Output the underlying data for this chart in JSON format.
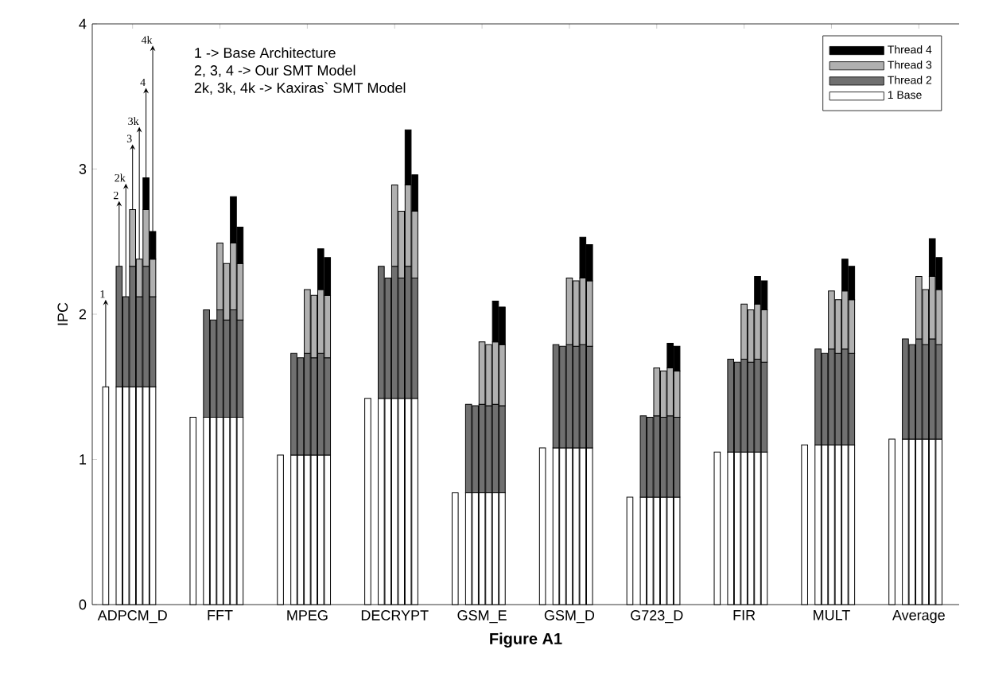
{
  "chart_data": {
    "type": "bar",
    "stacked": true,
    "title": "Figure A1",
    "ylabel": "IPC",
    "legend": "top right",
    "ylim": [
      0,
      4
    ],
    "yticks": [
      0,
      1,
      2,
      3,
      4
    ],
    "categories": [
      null,
      null,
      null,
      null,
      "ADPCM_D",
      null,
      null,
      null,
      null,
      null,
      null,
      null,
      null,
      null,
      null,
      null,
      null,
      "FFT",
      null,
      null,
      null,
      null,
      null,
      null,
      null,
      null,
      null,
      null,
      null,
      null,
      "MPEG",
      null,
      null,
      null,
      null,
      null,
      null,
      null,
      null,
      null,
      null,
      null,
      null,
      "DECRYPT",
      null,
      null,
      null,
      null,
      null,
      null,
      null,
      null,
      null,
      null,
      null,
      null,
      "GSM_E",
      null,
      null,
      null,
      null,
      null,
      null,
      null,
      null,
      null,
      null,
      null,
      null,
      "GSM_D",
      null,
      null,
      null,
      null,
      null,
      null,
      null,
      null,
      null,
      null,
      null,
      null,
      "G723_D",
      null,
      null,
      null,
      null,
      null,
      null,
      null,
      null,
      null,
      null,
      null,
      null,
      "FIR",
      null,
      null,
      null,
      null,
      null,
      null,
      null,
      null,
      null,
      null,
      null,
      null,
      "MULT",
      null,
      null,
      null,
      null,
      null,
      null,
      null,
      null,
      null,
      null,
      null,
      null,
      "Average",
      null,
      null,
      null
    ],
    "series": [
      {
        "name": "1 Base",
        "color": "#ffffff",
        "values": [
          1.5,
          null,
          1.5,
          1.5,
          1.5,
          1.5,
          1.5,
          1.5,
          null,
          null,
          null,
          null,
          null,
          1.29,
          null,
          1.29,
          1.29,
          1.29,
          1.29,
          1.29,
          1.29,
          null,
          null,
          null,
          null,
          null,
          1.03,
          null,
          1.03,
          1.03,
          1.03,
          1.03,
          1.03,
          1.03,
          null,
          null,
          null,
          null,
          null,
          1.42,
          null,
          1.42,
          1.42,
          1.42,
          1.42,
          1.42,
          1.42,
          null,
          null,
          null,
          null,
          null,
          0.77,
          null,
          0.77,
          0.77,
          0.77,
          0.77,
          0.77,
          0.77,
          null,
          null,
          null,
          null,
          null,
          1.08,
          null,
          1.08,
          1.08,
          1.08,
          1.08,
          1.08,
          1.08,
          null,
          null,
          null,
          null,
          null,
          0.74,
          null,
          0.74,
          0.74,
          0.74,
          0.74,
          0.74,
          0.74,
          null,
          null,
          null,
          null,
          null,
          1.05,
          null,
          1.05,
          1.05,
          1.05,
          1.05,
          1.05,
          1.05,
          null,
          null,
          null,
          null,
          null,
          1.1,
          null,
          1.1,
          1.1,
          1.1,
          1.1,
          1.1,
          1.1,
          null,
          null,
          null,
          null,
          null,
          1.14,
          null,
          1.14,
          1.14,
          1.14,
          1.14,
          1.14,
          1.14
        ]
      },
      {
        "name": "Thread 2",
        "color": "#707070",
        "values": [
          null,
          null,
          0.83,
          0.62,
          0.83,
          0.62,
          0.83,
          0.62,
          null,
          null,
          null,
          null,
          null,
          null,
          null,
          0.74,
          0.67,
          0.74,
          0.67,
          0.74,
          0.67,
          null,
          null,
          null,
          null,
          null,
          null,
          null,
          0.7,
          0.67,
          0.7,
          0.67,
          0.7,
          0.67,
          null,
          null,
          null,
          null,
          null,
          null,
          null,
          0.91,
          0.83,
          0.91,
          0.83,
          0.91,
          0.83,
          null,
          null,
          null,
          null,
          null,
          null,
          null,
          0.61,
          0.6,
          0.61,
          0.6,
          0.61,
          0.6,
          null,
          null,
          null,
          null,
          null,
          null,
          null,
          0.71,
          0.7,
          0.71,
          0.7,
          0.71,
          0.7,
          null,
          null,
          null,
          null,
          null,
          null,
          null,
          0.56,
          0.55,
          0.56,
          0.55,
          0.56,
          0.55,
          null,
          null,
          null,
          null,
          null,
          null,
          null,
          0.64,
          0.62,
          0.64,
          0.62,
          0.64,
          0.62,
          null,
          null,
          null,
          null,
          null,
          null,
          null,
          0.66,
          0.63,
          0.66,
          0.63,
          0.66,
          0.63,
          null,
          null,
          null,
          null,
          null,
          null,
          null,
          0.69,
          0.65,
          0.69,
          0.65,
          0.69,
          0.65
        ]
      },
      {
        "name": "Thread 3",
        "color": "#b0b0b0",
        "values": [
          null,
          null,
          null,
          null,
          0.39,
          0.26,
          0.39,
          0.26,
          null,
          null,
          null,
          null,
          null,
          null,
          null,
          null,
          null,
          0.46,
          0.39,
          0.46,
          0.39,
          null,
          null,
          null,
          null,
          null,
          null,
          null,
          null,
          null,
          0.44,
          0.43,
          0.44,
          0.43,
          null,
          null,
          null,
          null,
          null,
          null,
          null,
          null,
          null,
          0.56,
          0.46,
          0.56,
          0.46,
          null,
          null,
          null,
          null,
          null,
          null,
          null,
          null,
          null,
          0.43,
          0.42,
          0.43,
          0.42,
          null,
          null,
          null,
          null,
          null,
          null,
          null,
          null,
          null,
          0.46,
          0.45,
          0.46,
          0.45,
          null,
          null,
          null,
          null,
          null,
          null,
          null,
          null,
          null,
          0.33,
          0.32,
          0.33,
          0.32,
          null,
          null,
          null,
          null,
          null,
          null,
          null,
          null,
          null,
          0.38,
          0.36,
          0.38,
          0.36,
          null,
          null,
          null,
          null,
          null,
          null,
          null,
          null,
          null,
          0.4,
          0.37,
          0.4,
          0.37,
          null,
          null,
          null,
          null,
          null,
          null,
          null,
          null,
          null,
          0.43,
          0.38,
          0.43,
          0.38
        ]
      },
      {
        "name": "Thread 4",
        "color": "#000000",
        "values": [
          null,
          null,
          null,
          null,
          null,
          null,
          0.22,
          0.19,
          null,
          null,
          null,
          null,
          null,
          null,
          null,
          null,
          null,
          null,
          null,
          0.32,
          0.25,
          null,
          null,
          null,
          null,
          null,
          null,
          null,
          null,
          null,
          null,
          null,
          0.28,
          0.26,
          null,
          null,
          null,
          null,
          null,
          null,
          null,
          null,
          null,
          null,
          null,
          0.38,
          0.25,
          null,
          null,
          null,
          null,
          null,
          null,
          null,
          null,
          null,
          null,
          null,
          0.28,
          0.26,
          null,
          null,
          null,
          null,
          null,
          null,
          null,
          null,
          null,
          null,
          null,
          0.28,
          0.25,
          null,
          null,
          null,
          null,
          null,
          null,
          null,
          null,
          null,
          null,
          null,
          0.17,
          0.17,
          null,
          null,
          null,
          null,
          null,
          null,
          null,
          null,
          null,
          null,
          null,
          0.19,
          0.2,
          null,
          null,
          null,
          null,
          null,
          null,
          null,
          null,
          null,
          null,
          null,
          0.22,
          0.23,
          null,
          null,
          null,
          null,
          null,
          null,
          null,
          null,
          null,
          null,
          null,
          0.26,
          0.22
        ]
      }
    ],
    "annotations": [
      "1 -> Base Architecture",
      "2, 3, 4 -> Our SMT Model",
      "2k, 3k, 4k -> Kaxiras` SMT Model",
      {
        "text": "1",
        "y": 1.5
      },
      {
        "text": "2",
        "y": 2.33
      },
      {
        "text": "2k",
        "y": 2.12
      },
      {
        "text": "3",
        "y": 2.72
      },
      {
        "text": "3k",
        "y": 2.38
      },
      {
        "text": "4",
        "y": 2.94
      },
      {
        "text": "4k",
        "y": 2.57
      }
    ]
  }
}
